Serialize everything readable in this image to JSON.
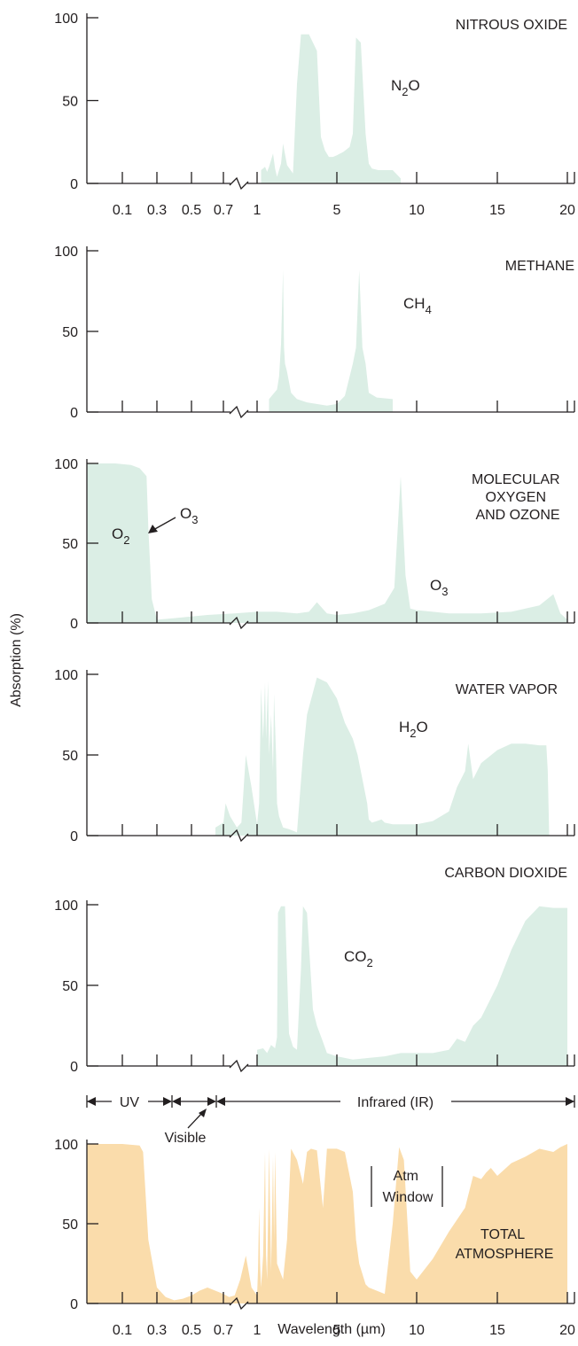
{
  "colors": {
    "gas": "#dbeee5",
    "total": "#fadcab",
    "axis": "#231f20"
  },
  "x_tick_labels": [
    "0.1",
    "0.3",
    "0.5",
    "0.7",
    "1",
    "5",
    "10",
    "15",
    "20"
  ],
  "ylabel": "Absorption (%)",
  "xlabel": "Wavelength (µm)",
  "chart_data": [
    {
      "type": "area",
      "name": "NITROUS OXIDE",
      "formula_main": "N",
      "formula_sub": "2",
      "formula_tail": "O",
      "ylim": [
        0,
        100
      ],
      "yticks": [
        0,
        50,
        100
      ],
      "fill": "gas",
      "x": [
        1.2,
        1.4,
        1.5,
        1.6,
        1.8,
        1.9,
        2.0,
        2.2,
        2.3,
        2.5,
        2.8,
        3.0,
        3.2,
        3.6,
        4.0,
        4.2,
        4.4,
        4.6,
        4.8,
        5.0,
        5.4,
        5.8,
        6.0,
        6.2,
        6.5,
        6.8,
        7.0,
        7.2,
        7.6,
        8.0,
        8.5,
        9.0
      ],
      "y": [
        8,
        10,
        7,
        10,
        18,
        9,
        4,
        12,
        24,
        11,
        6,
        60,
        90,
        90,
        80,
        28,
        20,
        16,
        16,
        17,
        19,
        22,
        30,
        88,
        85,
        30,
        12,
        9,
        8,
        8,
        8,
        3
      ]
    },
    {
      "type": "area",
      "name": "METHANE",
      "formula_main": "CH",
      "formula_sub": "4",
      "formula_tail": "",
      "ylim": [
        0,
        100
      ],
      "yticks": [
        0,
        50,
        100
      ],
      "fill": "gas",
      "x": [
        1.6,
        2.0,
        2.1,
        2.2,
        2.3,
        2.35,
        2.4,
        2.5,
        2.7,
        3.0,
        3.5,
        4.5,
        5.0,
        5.5,
        6.0,
        6.2,
        6.4,
        6.6,
        6.8,
        7.0,
        7.5,
        8.5
      ],
      "y": [
        8,
        14,
        22,
        42,
        88,
        40,
        30,
        25,
        12,
        8,
        6,
        4,
        5,
        10,
        30,
        40,
        88,
        40,
        30,
        12,
        9,
        8
      ]
    },
    {
      "type": "area",
      "name": "MOLECULAR OXYGEN AND OZONE",
      "formula_main": "O",
      "formula_sub": "2",
      "formula_tail": "",
      "formula2_main": "O",
      "formula2_sub": "3",
      "formula3_main": "O",
      "formula3_sub": "3",
      "ylim": [
        0,
        100
      ],
      "yticks": [
        0,
        50,
        100
      ],
      "fill": "gas",
      "x": [
        0.0,
        0.08,
        0.15,
        0.2,
        0.24,
        0.25,
        0.27,
        0.3,
        0.4,
        0.6,
        0.8,
        1.0,
        2.0,
        3.0,
        3.6,
        4.0,
        4.5,
        5.0,
        6.0,
        7.0,
        8.0,
        8.6,
        9.0,
        9.3,
        9.6,
        10.0,
        11.0,
        12.0,
        14.0,
        16.0,
        18.0,
        19.0,
        19.5,
        20.0
      ],
      "y": [
        100,
        100,
        99,
        97,
        92,
        60,
        15,
        2,
        3,
        5,
        6,
        7,
        7,
        6,
        7,
        13,
        6,
        5,
        6,
        8,
        12,
        22,
        92,
        30,
        9,
        8,
        7,
        6,
        6,
        7,
        11,
        18,
        6,
        2
      ]
    },
    {
      "type": "area",
      "name": "WATER VAPOR",
      "formula_main": "H",
      "formula_sub": "2",
      "formula_tail": "O",
      "ylim": [
        0,
        100
      ],
      "yticks": [
        0,
        50,
        100
      ],
      "fill": "gas",
      "x": [
        0.65,
        0.7,
        0.72,
        0.76,
        0.82,
        0.86,
        0.9,
        0.95,
        1.0,
        1.1,
        1.2,
        1.3,
        1.4,
        1.45,
        1.55,
        1.6,
        1.7,
        1.8,
        1.85,
        1.95,
        2.0,
        2.1,
        2.3,
        2.6,
        3.0,
        3.3,
        3.5,
        4.0,
        4.5,
        5.0,
        5.5,
        6.0,
        6.3,
        6.5,
        6.7,
        6.9,
        7.0,
        7.2,
        7.5,
        7.8,
        8.0,
        8.5,
        9.0,
        9.5,
        10.0,
        11.0,
        12.0,
        12.5,
        13.0,
        13.2,
        13.5,
        14.0,
        15.0,
        16.0,
        17.0,
        18.0,
        18.5,
        18.6,
        18.7
      ],
      "y": [
        5,
        8,
        20,
        12,
        5,
        8,
        50,
        30,
        7,
        20,
        92,
        60,
        95,
        60,
        96,
        50,
        75,
        40,
        88,
        50,
        20,
        12,
        5,
        4,
        2,
        50,
        75,
        98,
        95,
        85,
        70,
        60,
        50,
        40,
        30,
        20,
        10,
        8,
        9,
        10,
        8,
        7,
        7,
        7,
        7,
        9,
        15,
        30,
        40,
        57,
        35,
        45,
        53,
        57,
        57,
        56,
        56,
        40,
        0
      ]
    },
    {
      "type": "area",
      "name": "CARBON DIOXIDE",
      "formula_main": "CO",
      "formula_sub": "2",
      "formula_tail": "",
      "ylim": [
        0,
        100
      ],
      "yticks": [
        0,
        50,
        100
      ],
      "fill": "gas",
      "x": [
        1.0,
        1.3,
        1.5,
        1.7,
        1.9,
        2.0,
        2.05,
        2.2,
        2.4,
        2.6,
        2.8,
        3.0,
        3.2,
        3.3,
        3.5,
        3.8,
        4.0,
        4.3,
        4.5,
        5.0,
        6.0,
        7.0,
        8.0,
        9.0,
        10.0,
        11.0,
        12.0,
        12.5,
        13.0,
        13.5,
        14.0,
        15.0,
        16.0,
        17.0,
        18.0,
        19.0,
        20.0
      ],
      "y": [
        10,
        11,
        8,
        13,
        11,
        18,
        95,
        99,
        99,
        20,
        12,
        10,
        60,
        99,
        95,
        35,
        25,
        15,
        8,
        6,
        4,
        5,
        6,
        8,
        8,
        8,
        10,
        17,
        15,
        25,
        30,
        50,
        72,
        90,
        99,
        98,
        98
      ]
    },
    {
      "type": "area",
      "name": "TOTAL ATMOSPHERE",
      "formula_main": "",
      "formula_sub": "",
      "formula_tail": "",
      "ylim": [
        0,
        100
      ],
      "yticks": [
        0,
        50,
        100
      ],
      "fill": "total",
      "x": [
        0.0,
        0.1,
        0.2,
        0.22,
        0.25,
        0.3,
        0.35,
        0.4,
        0.45,
        0.5,
        0.55,
        0.6,
        0.65,
        0.7,
        0.75,
        0.8,
        0.85,
        0.9,
        0.95,
        1.0,
        1.05,
        1.1,
        1.15,
        1.2,
        1.3,
        1.4,
        1.45,
        1.5,
        1.6,
        1.7,
        1.8,
        1.85,
        1.9,
        2.0,
        2.3,
        2.5,
        2.7,
        3.0,
        3.3,
        3.5,
        3.7,
        4.0,
        4.3,
        4.5,
        5.0,
        5.5,
        6.0,
        6.2,
        6.4,
        6.8,
        7.0,
        7.5,
        8.0,
        8.5,
        8.9,
        9.2,
        9.6,
        10.0,
        11.0,
        12.0,
        13.0,
        13.5,
        14.0,
        14.3,
        14.6,
        15.0,
        16.0,
        17.0,
        18.0,
        19.0,
        19.5,
        20.0
      ],
      "y": [
        100,
        100,
        99,
        95,
        40,
        10,
        4,
        2,
        3,
        5,
        8,
        10,
        8,
        6,
        4,
        5,
        15,
        30,
        10,
        5,
        22,
        60,
        25,
        10,
        30,
        95,
        30,
        15,
        97,
        20,
        92,
        40,
        95,
        25,
        15,
        40,
        97,
        90,
        75,
        95,
        97,
        96,
        60,
        97,
        97,
        95,
        70,
        40,
        25,
        12,
        10,
        8,
        6,
        50,
        98,
        90,
        20,
        15,
        28,
        45,
        60,
        80,
        78,
        82,
        85,
        80,
        88,
        92,
        97,
        95,
        98,
        100
      ],
      "regions": {
        "uv": "UV",
        "visible": "Visible",
        "infrared": "Infrared (IR)"
      },
      "window_label_line1": "Atm",
      "window_label_line2": "Window",
      "name_line1": "TOTAL",
      "name_line2": "ATMOSPHERE"
    }
  ]
}
